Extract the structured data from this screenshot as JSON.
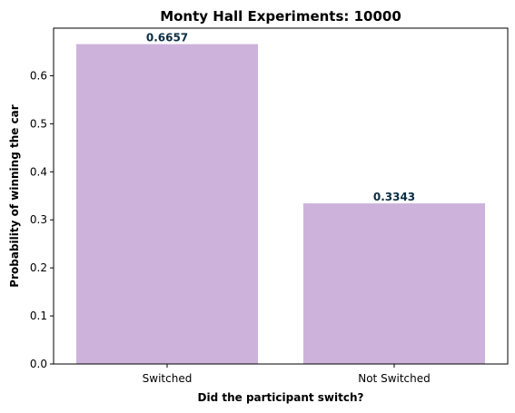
{
  "chart_data": {
    "type": "bar",
    "title": "Monty Hall Experiments: 10000",
    "xlabel": "Did the participant switch?",
    "ylabel": "Probability of winning the car",
    "categories": [
      "Switched",
      "Not Switched"
    ],
    "values": [
      0.6657,
      0.3343
    ],
    "data_labels": [
      "0.6657",
      "0.3343"
    ],
    "ylim": [
      0,
      0.699
    ],
    "yticks": [
      0.0,
      0.1,
      0.2,
      0.3,
      0.4,
      0.5,
      0.6
    ],
    "ytick_labels": [
      "0.0",
      "0.1",
      "0.2",
      "0.3",
      "0.4",
      "0.5",
      "0.6"
    ],
    "grid": false,
    "legend": "none",
    "colors": {
      "bar": "#cdb3db",
      "data_label": "#0b2e45",
      "axis": "#000000"
    }
  }
}
